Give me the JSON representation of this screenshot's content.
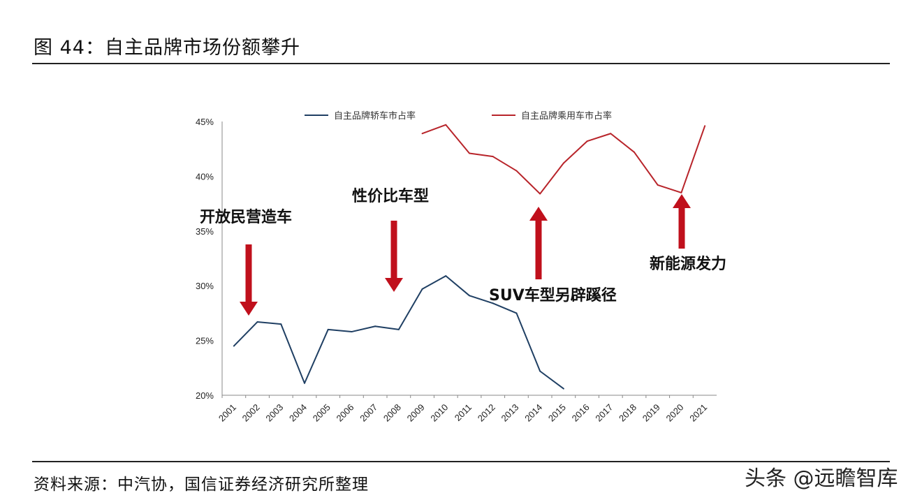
{
  "figure": {
    "title": "图 44：自主品牌市场份额攀升",
    "source": "资料来源：中汽协，国信证券经济研究所整理",
    "watermark": "头条 @远瞻智库"
  },
  "chart_data": {
    "type": "line",
    "x": [
      "2001",
      "2002",
      "2003",
      "2004",
      "2005",
      "2006",
      "2007",
      "2008",
      "2009",
      "2010",
      "2011",
      "2012",
      "2013",
      "2014",
      "2015",
      "2016",
      "2017",
      "2018",
      "2019",
      "2020",
      "2021"
    ],
    "ylim": [
      0.2,
      0.45
    ],
    "yticks": [
      "20%",
      "25%",
      "30%",
      "35%",
      "40%",
      "45%"
    ],
    "legend_position": "top",
    "series": [
      {
        "name": "自主品牌轿车市占率",
        "color": "#1f3f63",
        "values": [
          0.245,
          0.267,
          0.265,
          0.211,
          0.26,
          0.258,
          0.263,
          0.26,
          0.297,
          0.309,
          0.291,
          0.284,
          0.275,
          0.222,
          0.206,
          null,
          null,
          null,
          null,
          null,
          null
        ]
      },
      {
        "name": "自主品牌乘用车市占率",
        "color": "#b8242a",
        "values": [
          null,
          null,
          null,
          null,
          null,
          null,
          null,
          null,
          0.439,
          0.447,
          0.421,
          0.418,
          0.405,
          0.384,
          0.412,
          0.432,
          0.439,
          0.422,
          0.392,
          0.385,
          0.446
        ]
      }
    ],
    "annotations": [
      {
        "text": "开放民营造车",
        "direction": "down",
        "x": "2002"
      },
      {
        "text": "性价比车型",
        "direction": "down",
        "x": "2008"
      },
      {
        "text": "SUV车型另辟蹊径",
        "direction": "up",
        "x": "2014"
      },
      {
        "text": "新能源发力",
        "direction": "up",
        "x": "2020"
      }
    ]
  }
}
